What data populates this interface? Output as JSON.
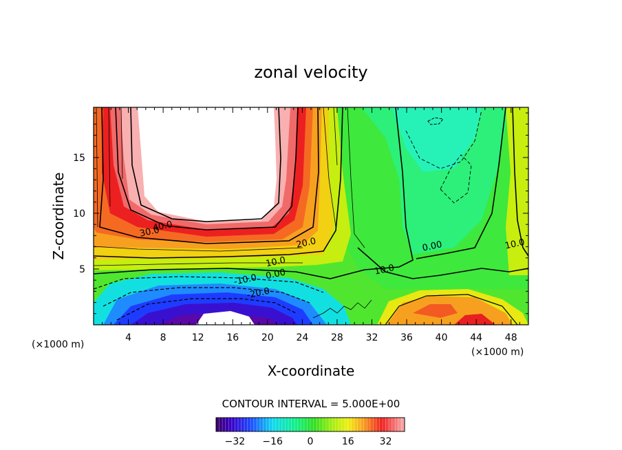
{
  "chart_data": {
    "type": "heatmap",
    "title": "zonal velocity",
    "xlabel": "X-coordinate",
    "ylabel": "Z-coordinate",
    "x_unit_left": "(×1000 m)",
    "x_unit_right": "(×1000 m)",
    "xlim": [
      0,
      50
    ],
    "ylim": [
      0,
      19.5
    ],
    "x_ticks": [
      4,
      8,
      12,
      16,
      20,
      24,
      28,
      32,
      36,
      40,
      44,
      48
    ],
    "y_ticks": [
      5,
      10,
      15
    ],
    "contour_interval_label": "CONTOUR INTERVAL = 5.000E+00",
    "contour_labels": [
      {
        "text": "40.0",
        "x": 8.0,
        "y": 8.6
      },
      {
        "text": "30.0",
        "x": 6.5,
        "y": 8.1
      },
      {
        "text": "20.0",
        "x": 24.5,
        "y": 7.1
      },
      {
        "text": "10.0",
        "x": 21.0,
        "y": 5.4
      },
      {
        "text": "0.00",
        "x": 21.0,
        "y": 4.3
      },
      {
        "text": "-10.0",
        "x": 17.5,
        "y": 3.8
      },
      {
        "text": "-20.0",
        "x": 19.0,
        "y": 2.6
      },
      {
        "text": "10.0",
        "x": 33.5,
        "y": 4.7
      },
      {
        "text": "0.00",
        "x": 39.0,
        "y": 6.8
      },
      {
        "text": "10.0",
        "x": 48.5,
        "y": 7.0
      }
    ],
    "colorbar": {
      "range": [
        -40,
        40
      ],
      "ticks": [
        -32,
        -16,
        0,
        16,
        32
      ],
      "tick_labels": [
        "−32",
        "−16",
        "0",
        "16",
        "32"
      ]
    }
  }
}
